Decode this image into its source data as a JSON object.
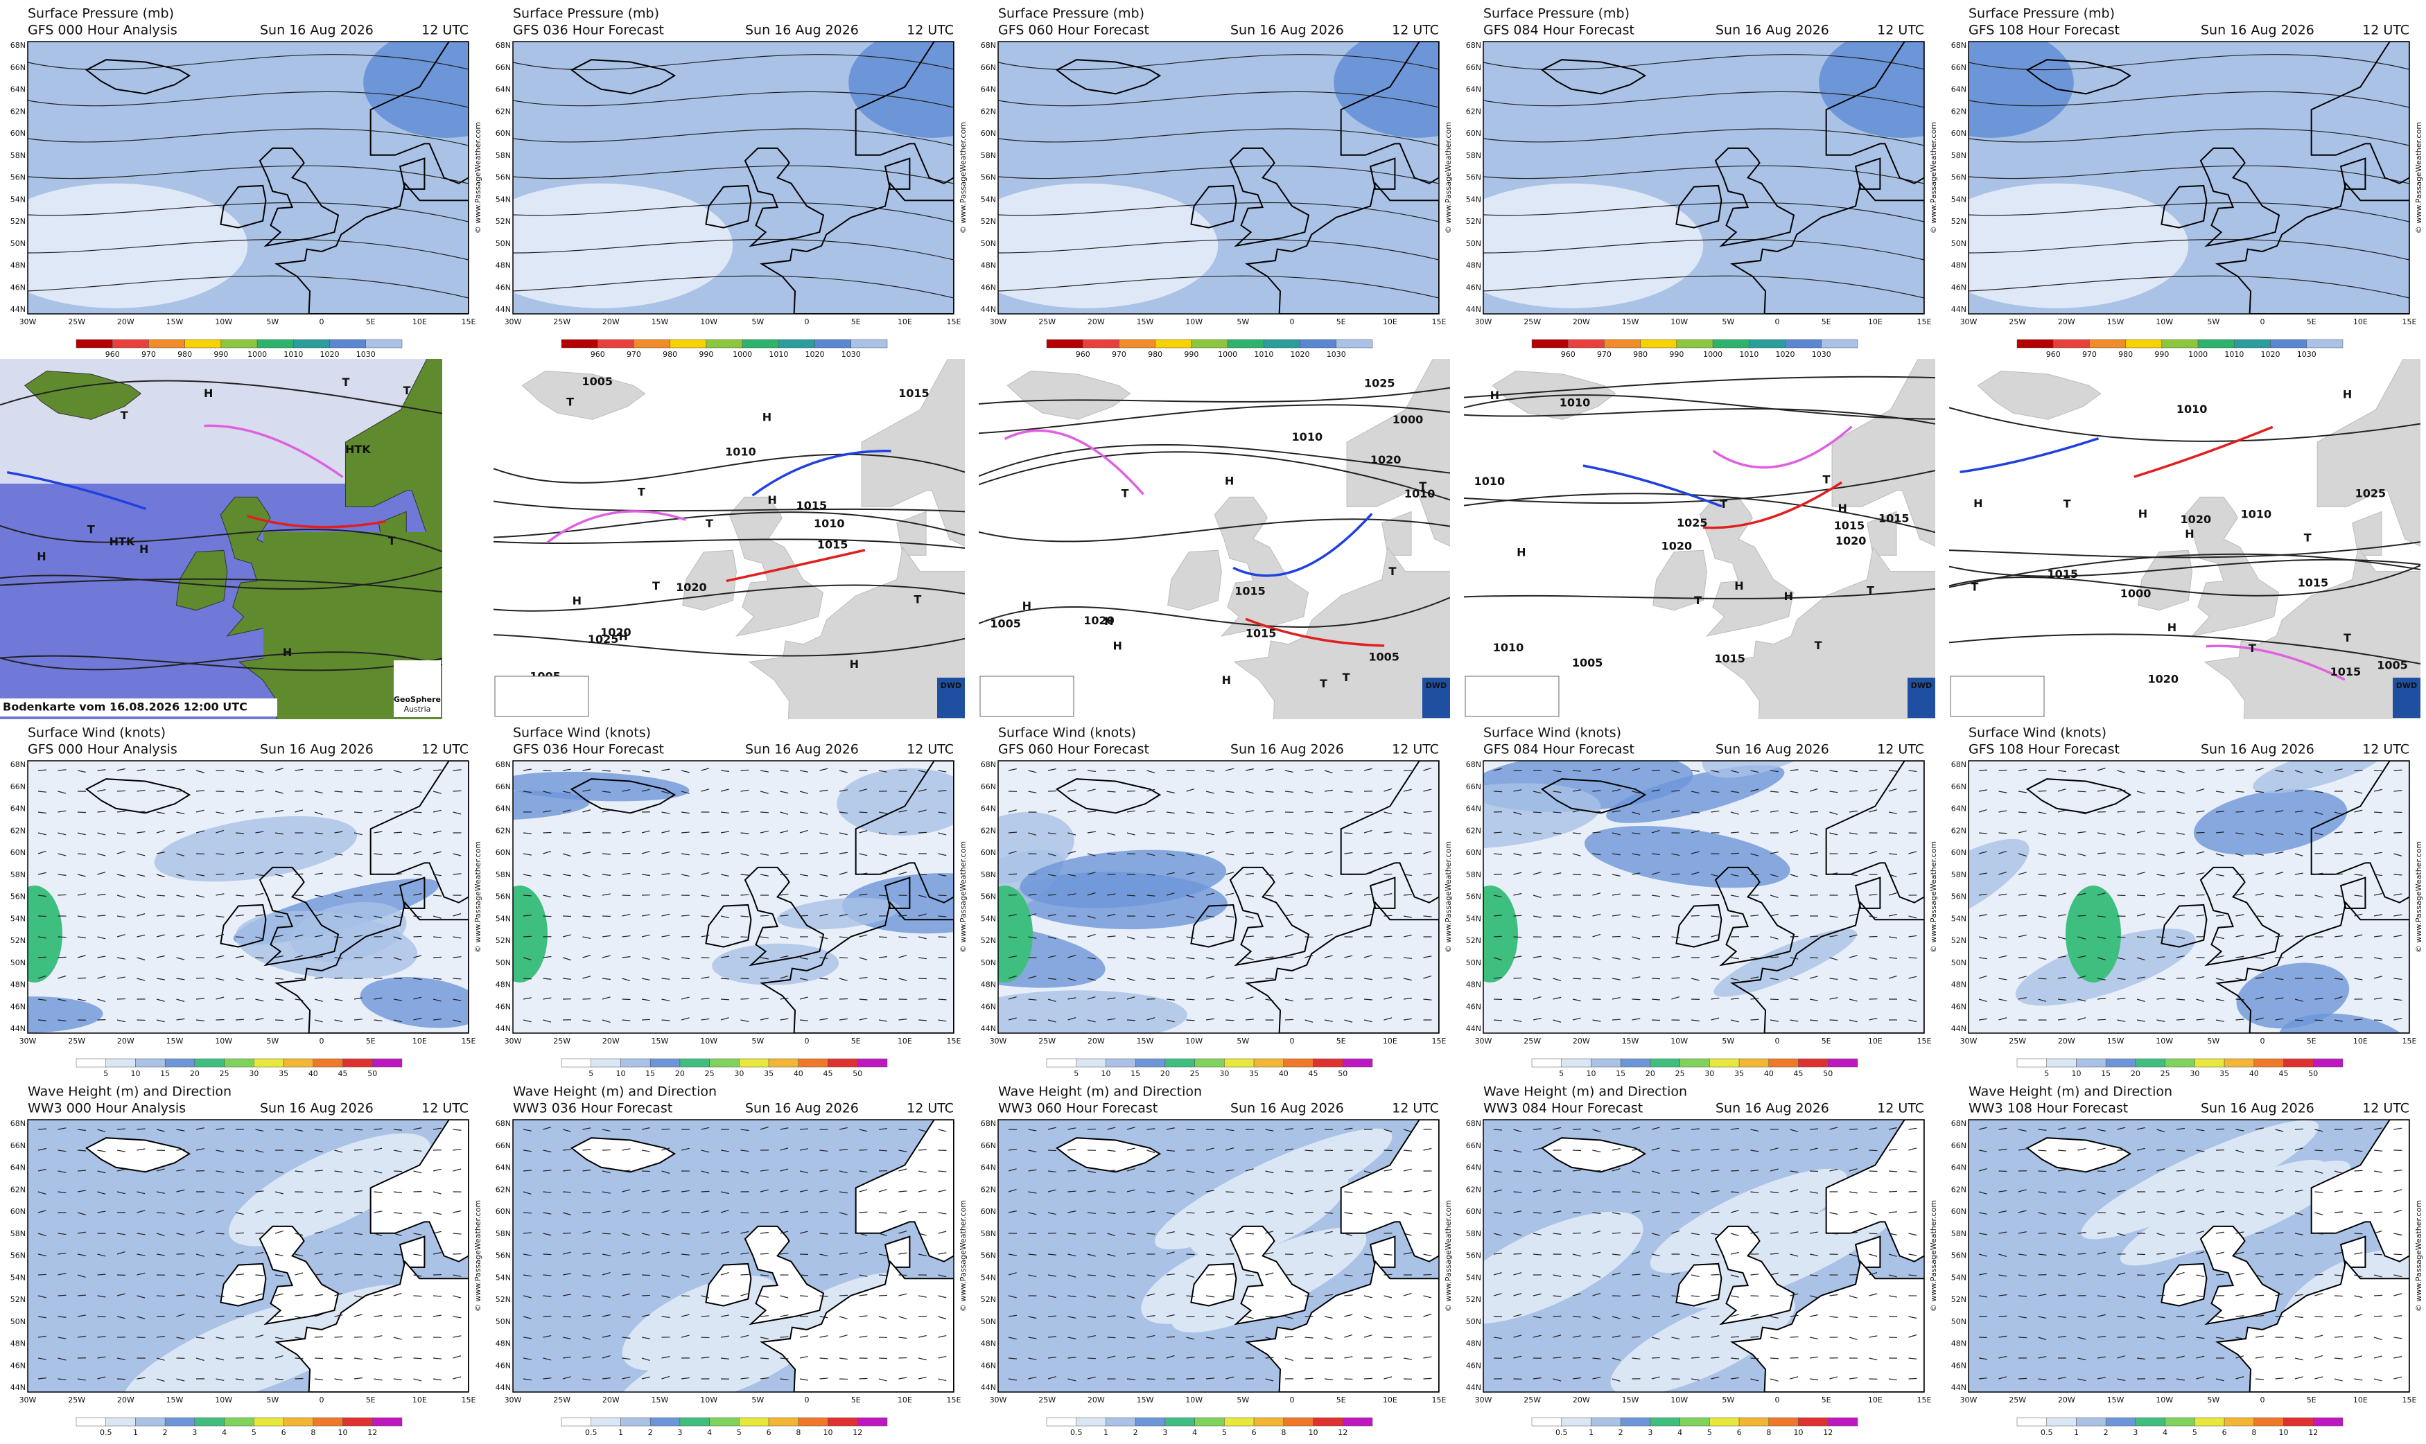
{
  "pressure": {
    "title": "Surface Pressure (mb)",
    "forecasts": [
      "GFS 000 Hour Analysis",
      "GFS 036 Hour Forecast",
      "GFS 060 Hour Forecast",
      "GFS 084 Hour Forecast",
      "GFS 108 Hour Forecast"
    ],
    "date": "Sun 16 Aug 2026",
    "time": "12 UTC",
    "scale": [
      960,
      970,
      980,
      990,
      1000,
      1010,
      1020,
      1030
    ]
  },
  "fronts": {
    "panels": [
      {
        "caption": "Bodenkarte vom 16.08.2026 12:00 UTC",
        "logo": "GeoSphere",
        "logo_sub": "Austria",
        "labels": [
          "H",
          "H",
          "T",
          "T",
          "T",
          "HTK",
          "HTK",
          "H",
          "T",
          "T",
          "H"
        ]
      },
      {
        "logo": "DWD",
        "labels": [
          "1020",
          "H",
          "1015",
          "1010",
          "T",
          "T",
          "1005",
          "1025",
          "H",
          "T",
          "H",
          "1015",
          "1020",
          "T",
          "H",
          "H",
          "1005",
          "T",
          "1015",
          "1010"
        ]
      },
      {
        "logo": "DWD",
        "labels": [
          "1010",
          "T",
          "1005",
          "H",
          "1020",
          "1025",
          "H",
          "T",
          "1000",
          "T",
          "H",
          "1015",
          "1010",
          "H",
          "T",
          "1005",
          "1020",
          "T",
          "H",
          "1015"
        ]
      },
      {
        "logo": "DWD",
        "labels": [
          "1020",
          "1015",
          "T",
          "1010",
          "1025",
          "H",
          "T",
          "H",
          "1005",
          "1020",
          "T",
          "H",
          "1015",
          "T",
          "1010",
          "H",
          "T",
          "1015",
          "H",
          "1010"
        ]
      },
      {
        "logo": "DWD",
        "labels": [
          "1005",
          "1010",
          "T",
          "1015",
          "1020",
          "H",
          "T",
          "1000",
          "H",
          "1025",
          "T",
          "H",
          "1015",
          "1020",
          "T",
          "H",
          "1010",
          "T",
          "1015",
          "H"
        ]
      }
    ]
  },
  "wind": {
    "title": "Surface Wind (knots)",
    "forecasts": [
      "GFS 000 Hour Analysis",
      "GFS 036 Hour Forecast",
      "GFS 060 Hour Forecast",
      "GFS 084 Hour Forecast",
      "GFS 108 Hour Forecast"
    ],
    "date": "Sun 16 Aug 2026",
    "time": "12 UTC",
    "scale": [
      5,
      10,
      15,
      20,
      25,
      30,
      35,
      40,
      45,
      50
    ]
  },
  "wave": {
    "title": "Wave Height (m) and Direction",
    "forecasts": [
      "WW3 000 Hour Analysis",
      "WW3 036 Hour Forecast",
      "WW3 060 Hour Forecast",
      "WW3 084 Hour Forecast",
      "WW3 108 Hour Forecast"
    ],
    "date": "Sun 16 Aug 2026",
    "time": "12 UTC",
    "scale": [
      0.5,
      1,
      2,
      3,
      4,
      5,
      6,
      8,
      10,
      12
    ]
  },
  "lat_ticks": [
    "68N",
    "66N",
    "64N",
    "62N",
    "60N",
    "58N",
    "56N",
    "54N",
    "52N",
    "50N",
    "48N",
    "46N",
    "44N"
  ],
  "lon_ticks": [
    "30W",
    "25W",
    "20W",
    "15W",
    "10W",
    "5W",
    "0",
    "5E",
    "10E",
    "15E"
  ],
  "watermark": "© www.PassageWeather.com"
}
